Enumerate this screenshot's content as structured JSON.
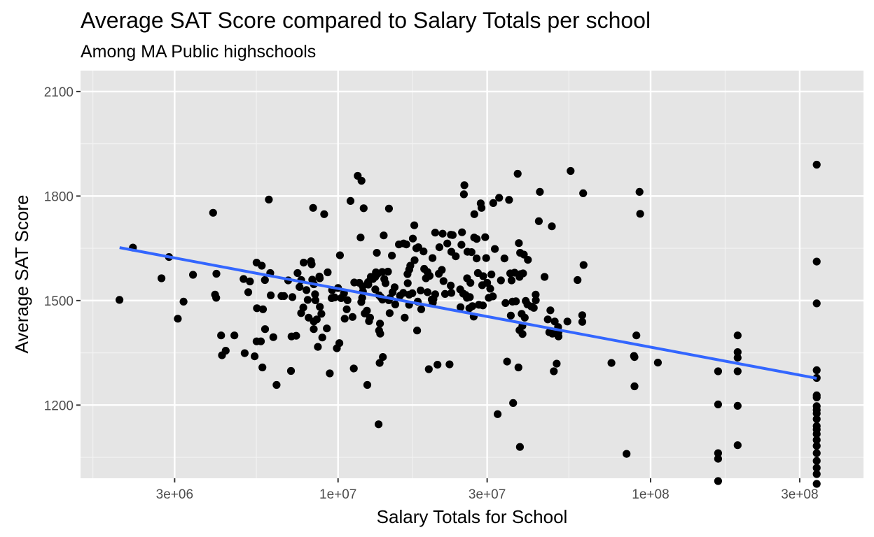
{
  "chart_data": {
    "type": "scatter",
    "title": "Average SAT Score compared to Salary Totals per school",
    "subtitle": "Among MA Public highschools",
    "xlabel": "Salary Totals for School",
    "ylabel": "Average SAT Score",
    "x_scale": "log10",
    "xlim": [
      1500000,
      480000000
    ],
    "ylim": [
      990,
      2160
    ],
    "x_ticks": [
      {
        "value": 3000000,
        "label": "3e+06"
      },
      {
        "value": 10000000,
        "label": "1e+07"
      },
      {
        "value": 30000000,
        "label": "3e+07"
      },
      {
        "value": 100000000,
        "label": "1e+08"
      },
      {
        "value": 300000000,
        "label": "3e+08"
      }
    ],
    "y_ticks": [
      {
        "value": 1200,
        "label": "1200"
      },
      {
        "value": 1500,
        "label": "1500"
      },
      {
        "value": 1800,
        "label": "1800"
      },
      {
        "value": 2100,
        "label": "2100"
      }
    ],
    "grid": true,
    "panel_background": "#e5e5e5",
    "point_color": "#000000",
    "trend_line": {
      "method": "lm",
      "color": "#3366ff",
      "x_start": 2000000,
      "y_start": 1652,
      "x_end": 340000000,
      "y_end": 1277
    },
    "points": [
      [
        1998000,
        1502
      ],
      [
        2206000,
        1652
      ],
      [
        2724000,
        1564
      ],
      [
        2878000,
        1625
      ],
      [
        3071000,
        1448
      ],
      [
        3204000,
        1497
      ],
      [
        3436000,
        1574
      ],
      [
        3984000,
        1752
      ],
      [
        4041000,
        1517
      ],
      [
        4074000,
        1508
      ],
      [
        4082000,
        1577
      ],
      [
        4225000,
        1400
      ],
      [
        4254000,
        1343
      ],
      [
        4371000,
        1356
      ],
      [
        4661000,
        1400
      ],
      [
        4987000,
        1562
      ],
      [
        5027000,
        1349
      ],
      [
        5160000,
        1524
      ],
      [
        5225000,
        1555
      ],
      [
        5409000,
        1340
      ],
      [
        5487000,
        1383
      ],
      [
        5487000,
        1609
      ],
      [
        5502000,
        1478
      ],
      [
        5663000,
        1383
      ],
      [
        5702000,
        1600
      ],
      [
        5727000,
        1308
      ],
      [
        5753000,
        1475
      ],
      [
        5836000,
        1559
      ],
      [
        5842000,
        1418
      ],
      [
        6008000,
        1790
      ],
      [
        6069000,
        1579
      ],
      [
        6091000,
        1515
      ],
      [
        6208000,
        1395
      ],
      [
        6358000,
        1258
      ],
      [
        6590000,
        1513
      ],
      [
        6716000,
        1513
      ],
      [
        6927000,
        1558
      ],
      [
        7072000,
        1298
      ],
      [
        7101000,
        1397
      ],
      [
        7142000,
        1510
      ],
      [
        7345000,
        1399
      ],
      [
        7423000,
        1579
      ],
      [
        7530000,
        1539
      ],
      [
        7619000,
        1464
      ],
      [
        7623000,
        1559
      ],
      [
        7743000,
        1480
      ],
      [
        7762000,
        1609
      ],
      [
        7926000,
        1530
      ],
      [
        8000000,
        1502
      ],
      [
        8052000,
        1451
      ],
      [
        8193000,
        1613
      ],
      [
        8231000,
        1604
      ],
      [
        8273000,
        1560
      ],
      [
        8324000,
        1766
      ],
      [
        8363000,
        1418
      ],
      [
        8364000,
        1440
      ],
      [
        8365000,
        1547
      ],
      [
        8445000,
        1518
      ],
      [
        8466000,
        1501
      ],
      [
        8549000,
        1446
      ],
      [
        8621000,
        1367
      ],
      [
        8717000,
        1569
      ],
      [
        8744000,
        1482
      ],
      [
        8740000,
        1564
      ],
      [
        8846000,
        1462
      ],
      [
        8902000,
        1394
      ],
      [
        9031000,
        1748
      ],
      [
        9208000,
        1420
      ],
      [
        9263000,
        1581
      ],
      [
        9409000,
        1291
      ],
      [
        9544000,
        1507
      ],
      [
        9573000,
        1530
      ],
      [
        9750000,
        1509
      ],
      [
        9913000,
        1363
      ],
      [
        10000000,
        1536
      ],
      [
        10100000,
        1378
      ],
      [
        10140000,
        1630
      ],
      [
        10230000,
        1507
      ],
      [
        10450000,
        1521
      ],
      [
        10500000,
        1448
      ],
      [
        10660000,
        1475
      ],
      [
        10720000,
        1501
      ],
      [
        10960000,
        1786
      ],
      [
        11130000,
        1453
      ],
      [
        11230000,
        1305
      ],
      [
        11270000,
        1552
      ],
      [
        11560000,
        1858
      ],
      [
        11700000,
        1551
      ],
      [
        11810000,
        1681
      ],
      [
        11870000,
        1496
      ],
      [
        11890000,
        1844
      ],
      [
        11950000,
        1508
      ],
      [
        11990000,
        1541
      ],
      [
        12010000,
        1526
      ],
      [
        12080000,
        1765
      ],
      [
        12170000,
        1463
      ],
      [
        12370000,
        1471
      ],
      [
        12410000,
        1258
      ],
      [
        12480000,
        1553
      ],
      [
        12500000,
        1546
      ],
      [
        12560000,
        1441
      ],
      [
        12660000,
        1451
      ],
      [
        12730000,
        1568
      ],
      [
        12930000,
        1562
      ],
      [
        13150000,
        1568
      ],
      [
        13160000,
        1532
      ],
      [
        13220000,
        1581
      ],
      [
        13310000,
        1637
      ],
      [
        13400000,
        1577
      ],
      [
        13480000,
        1145
      ],
      [
        13530000,
        1414
      ],
      [
        13540000,
        1515
      ],
      [
        13590000,
        1321
      ],
      [
        13620000,
        1434
      ],
      [
        13640000,
        1405
      ],
      [
        13730000,
        1509
      ],
      [
        13840000,
        1582
      ],
      [
        13870000,
        1503
      ],
      [
        13910000,
        1338
      ],
      [
        14000000,
        1687
      ],
      [
        14060000,
        1562
      ],
      [
        14190000,
        1550
      ],
      [
        14450000,
        1583
      ],
      [
        14540000,
        1501
      ],
      [
        14550000,
        1764
      ],
      [
        14630000,
        1464
      ],
      [
        14650000,
        1507
      ],
      [
        14870000,
        1629
      ],
      [
        14950000,
        1524
      ],
      [
        15170000,
        1538
      ],
      [
        15240000,
        1489
      ],
      [
        15660000,
        1661
      ],
      [
        15790000,
        1514
      ],
      [
        16170000,
        1522
      ],
      [
        16210000,
        1664
      ],
      [
        16340000,
        1451
      ],
      [
        16540000,
        1661
      ],
      [
        16680000,
        1576
      ],
      [
        16710000,
        1550
      ],
      [
        16880000,
        1488
      ],
      [
        16880000,
        1517
      ],
      [
        16900000,
        1589
      ],
      [
        17030000,
        1600
      ],
      [
        17290000,
        1521
      ],
      [
        17350000,
        1678
      ],
      [
        17540000,
        1716
      ],
      [
        17580000,
        1616
      ],
      [
        17800000,
        1650
      ],
      [
        17910000,
        1414
      ],
      [
        17990000,
        1497
      ],
      [
        18060000,
        1653
      ],
      [
        18370000,
        1529
      ],
      [
        18460000,
        1475
      ],
      [
        18780000,
        1641
      ],
      [
        18860000,
        1591
      ],
      [
        19110000,
        1564
      ],
      [
        19330000,
        1582
      ],
      [
        19340000,
        1524
      ],
      [
        19520000,
        1303
      ],
      [
        19640000,
        1571
      ],
      [
        19940000,
        1503
      ],
      [
        20060000,
        1622
      ],
      [
        20100000,
        1494
      ],
      [
        20190000,
        1504
      ],
      [
        20450000,
        1695
      ],
      [
        20460000,
        1518
      ],
      [
        20810000,
        1316
      ],
      [
        21010000,
        1577
      ],
      [
        21100000,
        1653
      ],
      [
        21480000,
        1588
      ],
      [
        21610000,
        1692
      ],
      [
        21750000,
        1556
      ],
      [
        22000000,
        1519
      ],
      [
        22370000,
        1664
      ],
      [
        22740000,
        1317
      ],
      [
        22940000,
        1543
      ],
      [
        22960000,
        1689
      ],
      [
        23050000,
        1640
      ],
      [
        23050000,
        1522
      ],
      [
        23270000,
        1688
      ],
      [
        23800000,
        1627
      ],
      [
        24590000,
        1532
      ],
      [
        24660000,
        1481
      ],
      [
        24820000,
        1660
      ],
      [
        24920000,
        1696
      ],
      [
        25140000,
        1520
      ],
      [
        25280000,
        1805
      ],
      [
        25370000,
        1831
      ],
      [
        25600000,
        1516
      ],
      [
        25840000,
        1508
      ],
      [
        25880000,
        1564
      ],
      [
        25950000,
        1640
      ],
      [
        26310000,
        1478
      ],
      [
        26410000,
        1510
      ],
      [
        26520000,
        1551
      ],
      [
        26740000,
        1639
      ],
      [
        26920000,
        1484
      ],
      [
        27170000,
        1454
      ],
      [
        27270000,
        1681
      ],
      [
        27290000,
        1748
      ],
      [
        27760000,
        1621
      ],
      [
        27770000,
        1677
      ],
      [
        28020000,
        1579
      ],
      [
        28230000,
        1488
      ],
      [
        28610000,
        1779
      ],
      [
        28790000,
        1766
      ],
      [
        28920000,
        1544
      ],
      [
        29070000,
        1486
      ],
      [
        29140000,
        1570
      ],
      [
        29570000,
        1682
      ],
      [
        29780000,
        1622
      ],
      [
        30000000,
        1551
      ],
      [
        30350000,
        1508
      ],
      [
        30690000,
        1534
      ],
      [
        30960000,
        1575
      ],
      [
        31290000,
        1512
      ],
      [
        31370000,
        1780
      ],
      [
        31740000,
        1648
      ],
      [
        32410000,
        1174
      ],
      [
        32760000,
        1795
      ],
      [
        33200000,
        1558
      ],
      [
        34070000,
        1621
      ],
      [
        34340000,
        1493
      ],
      [
        34750000,
        1325
      ],
      [
        35250000,
        1789
      ],
      [
        35560000,
        1578
      ],
      [
        35710000,
        1457
      ],
      [
        35920000,
        1558
      ],
      [
        36160000,
        1497
      ],
      [
        36330000,
        1206
      ],
      [
        36720000,
        1580
      ],
      [
        37080000,
        1498
      ],
      [
        37560000,
        1864
      ],
      [
        37780000,
        1308
      ],
      [
        37900000,
        1665
      ],
      [
        38080000,
        1415
      ],
      [
        38080000,
        1568
      ],
      [
        38180000,
        1080
      ],
      [
        38250000,
        1637
      ],
      [
        38410000,
        1576
      ],
      [
        38680000,
        1462
      ],
      [
        38880000,
        1427
      ],
      [
        38920000,
        1404
      ],
      [
        39090000,
        1578
      ],
      [
        39300000,
        1632
      ],
      [
        39570000,
        1451
      ],
      [
        39860000,
        1499
      ],
      [
        40350000,
        1489
      ],
      [
        40510000,
        1617
      ],
      [
        41510000,
        1483
      ],
      [
        42300000,
        1479
      ],
      [
        42900000,
        1517
      ],
      [
        42930000,
        1501
      ],
      [
        43900000,
        1728
      ],
      [
        44240000,
        1812
      ],
      [
        45800000,
        1568
      ],
      [
        46890000,
        1446
      ],
      [
        47420000,
        1409
      ],
      [
        47800000,
        1472
      ],
      [
        48330000,
        1713
      ],
      [
        48490000,
        1405
      ],
      [
        49010000,
        1297
      ],
      [
        49360000,
        1440
      ],
      [
        50060000,
        1319
      ],
      [
        50590000,
        1424
      ],
      [
        50740000,
        1397
      ],
      [
        50740000,
        1410
      ],
      [
        54190000,
        1440
      ],
      [
        55490000,
        1872
      ],
      [
        58400000,
        1559
      ],
      [
        60440000,
        1458
      ],
      [
        60490000,
        1439
      ],
      [
        60850000,
        1808
      ],
      [
        61030000,
        1602
      ],
      [
        74970000,
        1321
      ],
      [
        83790000,
        1060
      ],
      [
        88500000,
        1341
      ],
      [
        88840000,
        1338
      ],
      [
        88840000,
        1254
      ],
      [
        90090000,
        1400
      ],
      [
        92200000,
        1812
      ],
      [
        92600000,
        1749
      ],
      [
        105500000,
        1322
      ],
      [
        164500000,
        1297
      ],
      [
        164500000,
        1202
      ],
      [
        164500000,
        1046
      ],
      [
        164500000,
        1062
      ],
      [
        164500000,
        982
      ],
      [
        189900000,
        1400
      ],
      [
        189900000,
        1352
      ],
      [
        189900000,
        1336
      ],
      [
        189900000,
        1297
      ],
      [
        189900000,
        1198
      ],
      [
        189900000,
        1085
      ],
      [
        340000000,
        1890
      ],
      [
        340000000,
        1612
      ],
      [
        340000000,
        1492
      ],
      [
        340000000,
        1300
      ],
      [
        340000000,
        1278
      ],
      [
        340000000,
        1228
      ],
      [
        340000000,
        1222
      ],
      [
        340000000,
        1197
      ],
      [
        340000000,
        1186
      ],
      [
        340000000,
        1176
      ],
      [
        340000000,
        1160
      ],
      [
        340000000,
        1140
      ],
      [
        340000000,
        1130
      ],
      [
        340000000,
        1117
      ],
      [
        340000000,
        1100
      ],
      [
        340000000,
        1083
      ],
      [
        340000000,
        1062
      ],
      [
        340000000,
        1040
      ],
      [
        340000000,
        1020
      ],
      [
        340000000,
        1002
      ],
      [
        340000000,
        974
      ]
    ]
  }
}
